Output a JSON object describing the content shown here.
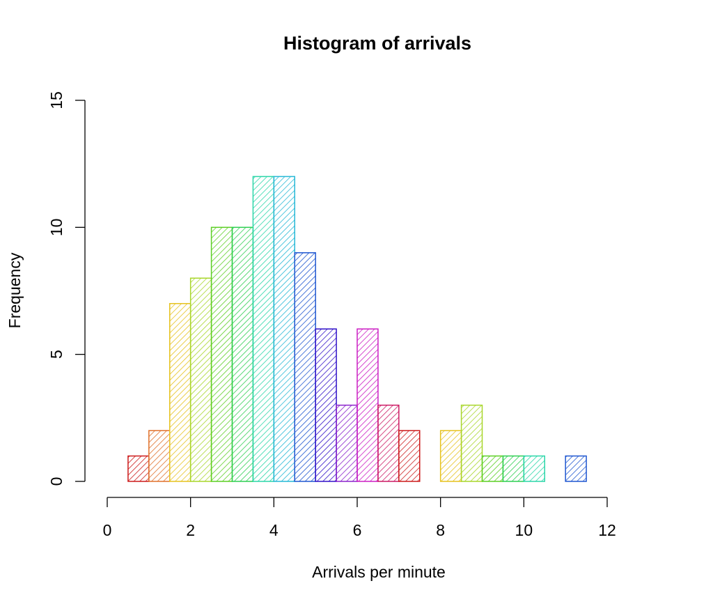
{
  "chart_data": {
    "type": "bar",
    "title": "Histogram of arrivals",
    "xlabel": "Arrivals per minute",
    "ylabel": "Frequency",
    "xlim": [
      0,
      12
    ],
    "ylim": [
      0,
      15
    ],
    "x_ticks": [
      "0",
      "2",
      "4",
      "6",
      "8",
      "10",
      "12"
    ],
    "y_ticks": [
      "0",
      "5",
      "10",
      "15"
    ],
    "bin_width": 0.5,
    "bins": [
      {
        "x0": 0.5,
        "x1": 1.0,
        "count": 1,
        "color": "#cc1a1a"
      },
      {
        "x0": 1.0,
        "x1": 1.5,
        "count": 2,
        "color": "#e0702a"
      },
      {
        "x0": 1.5,
        "x1": 2.0,
        "count": 7,
        "color": "#e6c21e"
      },
      {
        "x0": 2.0,
        "x1": 2.5,
        "count": 8,
        "color": "#a8d62a"
      },
      {
        "x0": 2.5,
        "x1": 3.0,
        "count": 10,
        "color": "#5ccf24"
      },
      {
        "x0": 3.0,
        "x1": 3.5,
        "count": 10,
        "color": "#2ecf52"
      },
      {
        "x0": 3.5,
        "x1": 4.0,
        "count": 12,
        "color": "#2ad6a8"
      },
      {
        "x0": 4.0,
        "x1": 4.5,
        "count": 12,
        "color": "#26b8d6"
      },
      {
        "x0": 4.5,
        "x1": 5.0,
        "count": 9,
        "color": "#1e56d0"
      },
      {
        "x0": 5.0,
        "x1": 5.5,
        "count": 6,
        "color": "#3010c8"
      },
      {
        "x0": 5.5,
        "x1": 6.0,
        "count": 3,
        "color": "#8a22cc"
      },
      {
        "x0": 6.0,
        "x1": 6.5,
        "count": 6,
        "color": "#cc1ec4"
      },
      {
        "x0": 6.5,
        "x1": 7.0,
        "count": 3,
        "color": "#cc1a64"
      },
      {
        "x0": 7.0,
        "x1": 7.5,
        "count": 2,
        "color": "#cc1a1a"
      },
      {
        "x0": 7.5,
        "x1": 8.0,
        "count": 0,
        "color": "#e0702a"
      },
      {
        "x0": 8.0,
        "x1": 8.5,
        "count": 2,
        "color": "#e6c21e"
      },
      {
        "x0": 8.5,
        "x1": 9.0,
        "count": 3,
        "color": "#a8d62a"
      },
      {
        "x0": 9.0,
        "x1": 9.5,
        "count": 1,
        "color": "#5ccf24"
      },
      {
        "x0": 9.5,
        "x1": 10.0,
        "count": 1,
        "color": "#2ecf52"
      },
      {
        "x0": 10.0,
        "x1": 10.5,
        "count": 1,
        "color": "#2ad6a8"
      },
      {
        "x0": 10.5,
        "x1": 11.0,
        "count": 0,
        "color": "#26b8d6"
      },
      {
        "x0": 11.0,
        "x1": 11.5,
        "count": 1,
        "color": "#1e56d0"
      }
    ],
    "fill_pattern": "diagonal-hatch",
    "grid": false,
    "legend": "none"
  }
}
